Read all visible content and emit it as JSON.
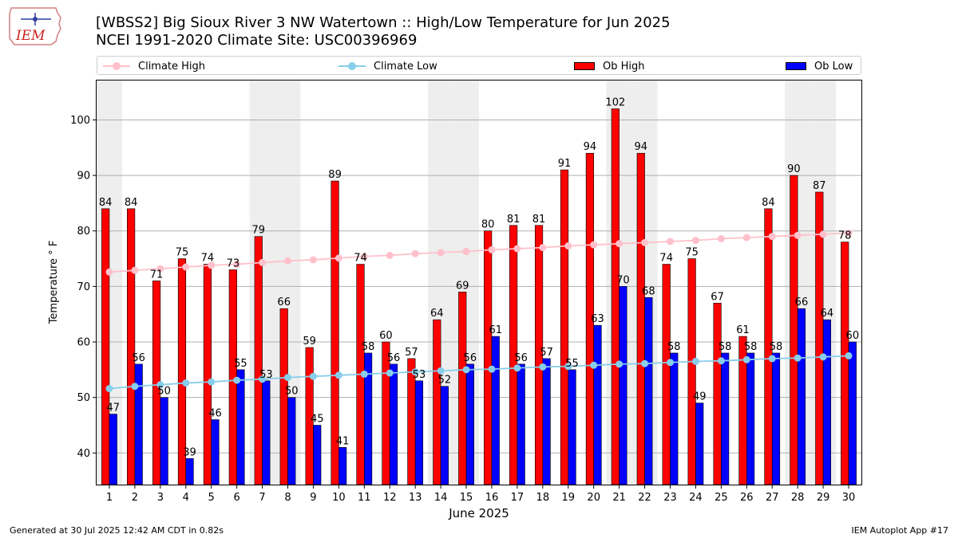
{
  "header": {
    "title_line1": "[WBSS2] Big Sioux River 3 NW Watertown :: High/Low Temperature for Jun 2025",
    "title_line2": "NCEI 1991-2020 Climate Site: USC00396969"
  },
  "logo": {
    "text": "IEM"
  },
  "footer": {
    "left": "Generated at 30 Jul 2025 12:42 AM CDT in 0.82s",
    "right": "IEM Autoplot App #17"
  },
  "colors": {
    "ob_high": "#ff0000",
    "ob_low": "#0000ff",
    "climate_high": "#ffc0cb",
    "climate_low": "#87ceeb",
    "weekend_shade": "#eeeeee",
    "grid": "#b0b0b0"
  },
  "chart_data": {
    "type": "bar",
    "xlabel": "June 2025",
    "ylabel": "Temperature ° F",
    "ylim": [
      34.3,
      107.1
    ],
    "yticks": [
      40,
      50,
      60,
      70,
      80,
      90,
      100
    ],
    "grid": true,
    "legend": "top",
    "categories": [
      "1",
      "2",
      "3",
      "4",
      "5",
      "6",
      "7",
      "8",
      "9",
      "10",
      "11",
      "12",
      "13",
      "14",
      "15",
      "16",
      "17",
      "18",
      "19",
      "20",
      "21",
      "22",
      "23",
      "24",
      "25",
      "26",
      "27",
      "28",
      "29",
      "30"
    ],
    "shaded_days": [
      1,
      7,
      8,
      14,
      15,
      21,
      22,
      28,
      29
    ],
    "series": [
      {
        "name": "Ob High",
        "kind": "bar",
        "values": [
          84,
          84,
          71,
          75,
          74,
          73,
          79,
          66,
          59,
          89,
          74,
          60,
          57,
          64,
          69,
          80,
          81,
          81,
          91,
          94,
          102,
          94,
          74,
          75,
          67,
          61,
          84,
          90,
          87,
          78
        ]
      },
      {
        "name": "Ob Low",
        "kind": "bar",
        "values": [
          47,
          56,
          50,
          39,
          46,
          55,
          53,
          50,
          45,
          41,
          58,
          56,
          53,
          52,
          56,
          61,
          56,
          57,
          55,
          63,
          70,
          68,
          58,
          49,
          58,
          58,
          58,
          66,
          64,
          60
        ]
      },
      {
        "name": "Climate High",
        "kind": "line",
        "values": [
          72.6,
          72.9,
          73.2,
          73.5,
          73.8,
          74.0,
          74.3,
          74.6,
          74.8,
          75.1,
          75.4,
          75.6,
          75.9,
          76.1,
          76.3,
          76.6,
          76.8,
          77.0,
          77.3,
          77.5,
          77.7,
          77.9,
          78.1,
          78.3,
          78.6,
          78.8,
          79.0,
          79.2,
          79.4,
          79.6
        ]
      },
      {
        "name": "Climate Low",
        "kind": "line",
        "values": [
          51.6,
          52.0,
          52.3,
          52.6,
          52.8,
          53.1,
          53.3,
          53.6,
          53.8,
          54.0,
          54.2,
          54.4,
          54.6,
          54.8,
          55.0,
          55.1,
          55.3,
          55.5,
          55.6,
          55.8,
          56.0,
          56.1,
          56.3,
          56.5,
          56.6,
          56.8,
          57.0,
          57.1,
          57.3,
          57.5
        ]
      }
    ]
  }
}
